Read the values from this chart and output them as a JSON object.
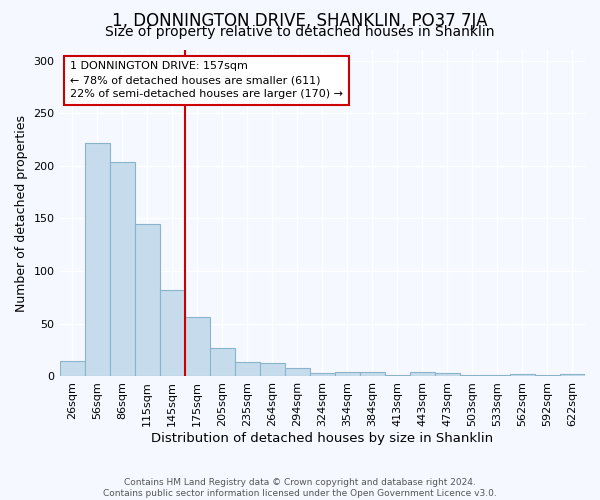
{
  "title": "1, DONNINGTON DRIVE, SHANKLIN, PO37 7JA",
  "subtitle": "Size of property relative to detached houses in Shanklin",
  "xlabel": "Distribution of detached houses by size in Shanklin",
  "ylabel": "Number of detached properties",
  "bar_labels": [
    "26sqm",
    "56sqm",
    "86sqm",
    "115sqm",
    "145sqm",
    "175sqm",
    "205sqm",
    "235sqm",
    "264sqm",
    "294sqm",
    "324sqm",
    "354sqm",
    "384sqm",
    "413sqm",
    "443sqm",
    "473sqm",
    "503sqm",
    "533sqm",
    "562sqm",
    "592sqm",
    "622sqm"
  ],
  "bar_values": [
    15,
    222,
    204,
    145,
    82,
    56,
    27,
    14,
    13,
    8,
    3,
    4,
    4,
    1,
    4,
    3,
    1,
    1,
    2,
    1,
    2
  ],
  "bar_color": "#c6dcec",
  "bar_edgecolor": "#8ab4cc",
  "bar_linewidth": 0.8,
  "vline_x_index": 4.5,
  "vline_color": "#cc0000",
  "annotation_text": "1 DONNINGTON DRIVE: 157sqm\n← 78% of detached houses are smaller (611)\n22% of semi-detached houses are larger (170) →",
  "annotation_box_color": "white",
  "annotation_box_edgecolor": "#cc0000",
  "ylim": [
    0,
    310
  ],
  "background_color": "#f5f8ff",
  "grid_color": "#ffffff",
  "title_fontsize": 12,
  "subtitle_fontsize": 10,
  "xlabel_fontsize": 9.5,
  "ylabel_fontsize": 9,
  "tick_fontsize": 8,
  "footer_text": "Contains HM Land Registry data © Crown copyright and database right 2024.\nContains public sector information licensed under the Open Government Licence v3.0."
}
